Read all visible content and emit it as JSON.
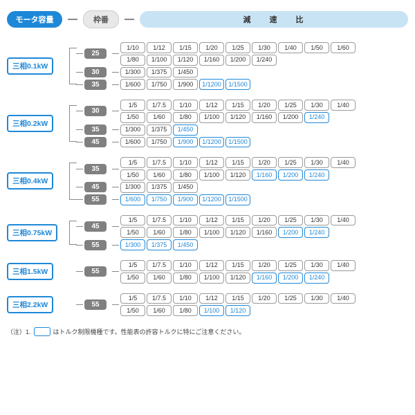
{
  "header": {
    "motor": "モータ容量",
    "frame": "枠番",
    "ratio": "減 速 比"
  },
  "note_prefix": "（注）1.",
  "note_text": "はトルク制限機種です。性能表の許容トルクに特にご注意ください。",
  "groups": [
    {
      "motor": "三相0.1kW",
      "frames": [
        {
          "tag": "25",
          "rows": [
            [
              {
                "v": "1/10"
              },
              {
                "v": "1/12"
              },
              {
                "v": "1/15"
              },
              {
                "v": "1/20"
              },
              {
                "v": "1/25"
              },
              {
                "v": "1/30"
              },
              {
                "v": "1/40"
              },
              {
                "v": "1/50"
              },
              {
                "v": "1/60"
              }
            ],
            [
              {
                "v": "1/80"
              },
              {
                "v": "1/100"
              },
              {
                "v": "1/120"
              },
              {
                "v": "1/160"
              },
              {
                "v": "1/200"
              },
              {
                "v": "1/240"
              }
            ]
          ]
        },
        {
          "tag": "30",
          "rows": [
            [
              {
                "v": "1/300"
              },
              {
                "v": "1/375"
              },
              {
                "v": "1/450"
              }
            ]
          ]
        },
        {
          "tag": "35",
          "rows": [
            [
              {
                "v": "1/600"
              },
              {
                "v": "1/750"
              },
              {
                "v": "1/900"
              },
              {
                "v": "1/1200",
                "h": true
              },
              {
                "v": "1/1500",
                "h": true
              }
            ]
          ]
        }
      ]
    },
    {
      "motor": "三相0.2kW",
      "frames": [
        {
          "tag": "30",
          "rows": [
            [
              {
                "v": "1/5"
              },
              {
                "v": "1/7.5"
              },
              {
                "v": "1/10"
              },
              {
                "v": "1/12"
              },
              {
                "v": "1/15"
              },
              {
                "v": "1/20"
              },
              {
                "v": "1/25"
              },
              {
                "v": "1/30"
              },
              {
                "v": "1/40"
              }
            ],
            [
              {
                "v": "1/50"
              },
              {
                "v": "1/60"
              },
              {
                "v": "1/80"
              },
              {
                "v": "1/100"
              },
              {
                "v": "1/120"
              },
              {
                "v": "1/160"
              },
              {
                "v": "1/200"
              },
              {
                "v": "1/240",
                "h": true
              }
            ]
          ]
        },
        {
          "tag": "35",
          "rows": [
            [
              {
                "v": "1/300"
              },
              {
                "v": "1/375"
              },
              {
                "v": "1/450",
                "h": true
              }
            ]
          ]
        },
        {
          "tag": "45",
          "rows": [
            [
              {
                "v": "1/600"
              },
              {
                "v": "1/750"
              },
              {
                "v": "1/900",
                "h": true
              },
              {
                "v": "1/1200",
                "h": true
              },
              {
                "v": "1/1500",
                "h": true
              }
            ]
          ]
        }
      ]
    },
    {
      "motor": "三相0.4kW",
      "frames": [
        {
          "tag": "35",
          "rows": [
            [
              {
                "v": "1/5"
              },
              {
                "v": "1/7.5"
              },
              {
                "v": "1/10"
              },
              {
                "v": "1/12"
              },
              {
                "v": "1/15"
              },
              {
                "v": "1/20"
              },
              {
                "v": "1/25"
              },
              {
                "v": "1/30"
              },
              {
                "v": "1/40"
              }
            ],
            [
              {
                "v": "1/50"
              },
              {
                "v": "1/60"
              },
              {
                "v": "1/80"
              },
              {
                "v": "1/100"
              },
              {
                "v": "1/120"
              },
              {
                "v": "1/160",
                "h": true
              },
              {
                "v": "1/200",
                "h": true
              },
              {
                "v": "1/240",
                "h": true
              }
            ]
          ]
        },
        {
          "tag": "45",
          "rows": [
            [
              {
                "v": "1/300"
              },
              {
                "v": "1/375"
              },
              {
                "v": "1/450"
              }
            ]
          ]
        },
        {
          "tag": "55",
          "rows": [
            [
              {
                "v": "1/600",
                "h": true
              },
              {
                "v": "1/750",
                "h": true
              },
              {
                "v": "1/900",
                "h": true
              },
              {
                "v": "1/1200",
                "h": true
              },
              {
                "v": "1/1500",
                "h": true
              }
            ]
          ]
        }
      ]
    },
    {
      "motor": "三相0.75kW",
      "frames": [
        {
          "tag": "45",
          "rows": [
            [
              {
                "v": "1/5"
              },
              {
                "v": "1/7.5"
              },
              {
                "v": "1/10"
              },
              {
                "v": "1/12"
              },
              {
                "v": "1/15"
              },
              {
                "v": "1/20"
              },
              {
                "v": "1/25"
              },
              {
                "v": "1/30"
              },
              {
                "v": "1/40"
              }
            ],
            [
              {
                "v": "1/50"
              },
              {
                "v": "1/60"
              },
              {
                "v": "1/80"
              },
              {
                "v": "1/100"
              },
              {
                "v": "1/120"
              },
              {
                "v": "1/160"
              },
              {
                "v": "1/200",
                "h": true
              },
              {
                "v": "1/240",
                "h": true
              }
            ]
          ]
        },
        {
          "tag": "55",
          "rows": [
            [
              {
                "v": "1/300",
                "h": true
              },
              {
                "v": "1/375",
                "h": true
              },
              {
                "v": "1/450",
                "h": true
              }
            ]
          ]
        }
      ]
    },
    {
      "motor": "三相1.5kW",
      "frames": [
        {
          "tag": "55",
          "rows": [
            [
              {
                "v": "1/5"
              },
              {
                "v": "1/7.5"
              },
              {
                "v": "1/10"
              },
              {
                "v": "1/12"
              },
              {
                "v": "1/15"
              },
              {
                "v": "1/20"
              },
              {
                "v": "1/25"
              },
              {
                "v": "1/30"
              },
              {
                "v": "1/40"
              }
            ],
            [
              {
                "v": "1/50"
              },
              {
                "v": "1/60"
              },
              {
                "v": "1/80"
              },
              {
                "v": "1/100"
              },
              {
                "v": "1/120"
              },
              {
                "v": "1/160",
                "h": true
              },
              {
                "v": "1/200",
                "h": true
              },
              {
                "v": "1/240",
                "h": true
              }
            ]
          ]
        }
      ]
    },
    {
      "motor": "三相2.2kW",
      "frames": [
        {
          "tag": "55",
          "rows": [
            [
              {
                "v": "1/5"
              },
              {
                "v": "1/7.5"
              },
              {
                "v": "1/10"
              },
              {
                "v": "1/12"
              },
              {
                "v": "1/15"
              },
              {
                "v": "1/20"
              },
              {
                "v": "1/25"
              },
              {
                "v": "1/30"
              },
              {
                "v": "1/40"
              }
            ],
            [
              {
                "v": "1/50"
              },
              {
                "v": "1/60"
              },
              {
                "v": "1/80"
              },
              {
                "v": "1/100",
                "h": true
              },
              {
                "v": "1/120",
                "h": true
              }
            ]
          ]
        }
      ]
    }
  ]
}
